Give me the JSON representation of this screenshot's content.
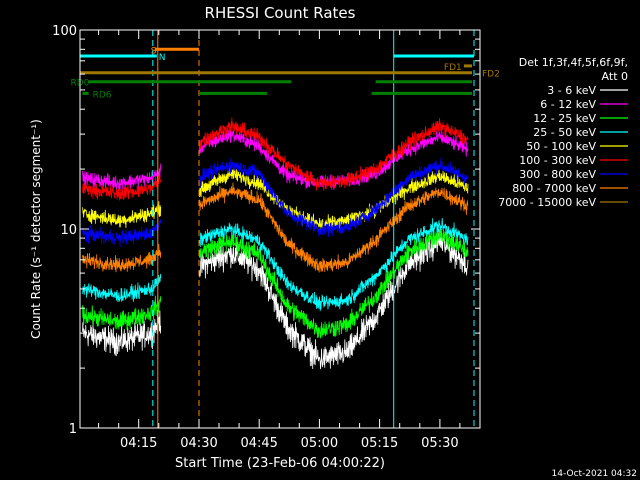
{
  "chart_data": {
    "type": "line",
    "title": "RHESSI Count Rates",
    "xlabel": "Start Time (23-Feb-06 04:00:22)",
    "ylabel": "Count Rate (s⁻¹ detector segment⁻¹)",
    "y_scale": "log",
    "ylim": [
      1,
      100
    ],
    "xlim": [
      "04:00:22",
      "05:40:00"
    ],
    "x_ticks": [
      "04:15",
      "04:30",
      "04:45",
      "05:00",
      "05:15",
      "05:30"
    ],
    "y_ticks": [
      "1",
      "10",
      "100"
    ],
    "grid": false,
    "legend_placement": "right",
    "legend_header": [
      "Det 1f,3f,4f,5f,6f,9f,",
      "Att 0"
    ],
    "timestamp": "14-Oct-2021 04:32",
    "gaps": [
      [
        "04:20:30",
        "04:30:00"
      ]
    ],
    "series": [
      {
        "name": "3 - 6 keV",
        "color": "#ffffff",
        "samples": [
          [
            "04:01",
            3.0
          ],
          [
            "04:10",
            2.7
          ],
          [
            "04:18",
            3.0
          ],
          [
            "04:31",
            6.6
          ],
          [
            "04:38",
            7.6
          ],
          [
            "04:45",
            6.3
          ],
          [
            "04:52",
            3.2
          ],
          [
            "05:00",
            2.2
          ],
          [
            "05:07",
            2.4
          ],
          [
            "05:14",
            3.6
          ],
          [
            "05:22",
            6.6
          ],
          [
            "05:30",
            8.7
          ],
          [
            "05:37",
            6.6
          ]
        ]
      },
      {
        "name": "6 - 12 keV",
        "color": "#ff00ff",
        "samples": [
          [
            "04:01",
            18.0
          ],
          [
            "04:10",
            17.0
          ],
          [
            "04:18",
            18.0
          ],
          [
            "04:31",
            26.0
          ],
          [
            "04:38",
            30.0
          ],
          [
            "04:45",
            26.0
          ],
          [
            "04:52",
            18.5
          ],
          [
            "05:00",
            17.0
          ],
          [
            "05:07",
            17.5
          ],
          [
            "05:14",
            19.0
          ],
          [
            "05:22",
            25.0
          ],
          [
            "05:30",
            29.0
          ],
          [
            "05:37",
            25.0
          ]
        ]
      },
      {
        "name": "12 - 25 keV",
        "color": "#00ff00",
        "samples": [
          [
            "04:01",
            3.7
          ],
          [
            "04:10",
            3.4
          ],
          [
            "04:18",
            3.8
          ],
          [
            "04:31",
            7.8
          ],
          [
            "04:38",
            8.7
          ],
          [
            "04:45",
            7.5
          ],
          [
            "04:52",
            4.1
          ],
          [
            "05:00",
            3.1
          ],
          [
            "05:07",
            3.3
          ],
          [
            "05:14",
            4.6
          ],
          [
            "05:22",
            7.6
          ],
          [
            "05:30",
            9.5
          ],
          [
            "05:37",
            7.6
          ]
        ]
      },
      {
        "name": "25 - 50 keV",
        "color": "#00ffff",
        "samples": [
          [
            "04:01",
            5.0
          ],
          [
            "04:10",
            4.6
          ],
          [
            "04:18",
            5.0
          ],
          [
            "04:31",
            9.0
          ],
          [
            "04:38",
            10.0
          ],
          [
            "04:45",
            8.7
          ],
          [
            "04:52",
            5.3
          ],
          [
            "05:00",
            4.2
          ],
          [
            "05:07",
            4.4
          ],
          [
            "05:14",
            5.8
          ],
          [
            "05:22",
            8.8
          ],
          [
            "05:30",
            10.5
          ],
          [
            "05:37",
            8.8
          ]
        ]
      },
      {
        "name": "50 - 100 keV",
        "color": "#ffff00",
        "samples": [
          [
            "04:01",
            12.0
          ],
          [
            "04:10",
            11.0
          ],
          [
            "04:18",
            12.0
          ],
          [
            "04:31",
            16.0
          ],
          [
            "04:38",
            19.0
          ],
          [
            "04:45",
            17.0
          ],
          [
            "04:52",
            12.5
          ],
          [
            "05:00",
            10.5
          ],
          [
            "05:07",
            11.0
          ],
          [
            "05:14",
            12.5
          ],
          [
            "05:22",
            16.0
          ],
          [
            "05:30",
            18.5
          ],
          [
            "05:37",
            16.0
          ]
        ]
      },
      {
        "name": "100 - 300 keV",
        "color": "#ff0000",
        "samples": [
          [
            "04:01",
            16.0
          ],
          [
            "04:10",
            15.0
          ],
          [
            "04:18",
            16.0
          ],
          [
            "04:31",
            28.0
          ],
          [
            "04:38",
            33.0
          ],
          [
            "04:45",
            29.0
          ],
          [
            "04:52",
            21.0
          ],
          [
            "05:00",
            17.0
          ],
          [
            "05:07",
            17.5
          ],
          [
            "05:14",
            20.0
          ],
          [
            "05:22",
            27.0
          ],
          [
            "05:30",
            33.0
          ],
          [
            "05:37",
            28.0
          ]
        ]
      },
      {
        "name": "300 - 800 keV",
        "color": "#0000ff",
        "samples": [
          [
            "04:01",
            9.5
          ],
          [
            "04:10",
            9.0
          ],
          [
            "04:18",
            9.5
          ],
          [
            "04:31",
            18.5
          ],
          [
            "04:38",
            21.0
          ],
          [
            "04:45",
            19.0
          ],
          [
            "04:52",
            12.0
          ],
          [
            "05:00",
            10.0
          ],
          [
            "05:07",
            10.2
          ],
          [
            "05:14",
            12.5
          ],
          [
            "05:22",
            18.0
          ],
          [
            "05:30",
            21.0
          ],
          [
            "05:37",
            18.0
          ]
        ]
      },
      {
        "name": "800 - 7000 keV",
        "color": "#ff8000",
        "samples": [
          [
            "04:01",
            7.0
          ],
          [
            "04:10",
            6.6
          ],
          [
            "04:18",
            7.0
          ],
          [
            "04:31",
            13.5
          ],
          [
            "04:38",
            15.5
          ],
          [
            "04:45",
            14.0
          ],
          [
            "04:52",
            8.5
          ],
          [
            "05:00",
            6.5
          ],
          [
            "05:07",
            6.8
          ],
          [
            "05:14",
            8.8
          ],
          [
            "05:22",
            13.0
          ],
          [
            "05:30",
            15.5
          ],
          [
            "05:37",
            13.0
          ]
        ]
      },
      {
        "name": "7000 - 15000 keV",
        "color": "#a07800",
        "samples": []
      }
    ],
    "annotations": {
      "horizontal_bars": [
        {
          "label": "S",
          "color": "#ff8000",
          "y": 80,
          "from": "04:19:00",
          "to": "04:30:00",
          "label_at": "04:18:00"
        },
        {
          "label": "N",
          "color": "#00ffff",
          "y": 74,
          "from": "04:00:22",
          "to": "04:19:30",
          "label_at": "04:20:00"
        },
        {
          "label": "",
          "color": "#00ffff",
          "y": 74,
          "from": "05:18:30",
          "to": "05:38:30",
          "label_at": ""
        },
        {
          "label": "FD1",
          "color": "#a07800",
          "y": 66,
          "from": "05:36:00",
          "to": "05:38:00",
          "label_at": "05:31:00"
        },
        {
          "label": "FD2",
          "color": "#a07800",
          "y": 61,
          "from": "04:00:22",
          "to": "05:38:00",
          "label_at": "05:40:30"
        },
        {
          "label": "RD0",
          "color": "#008000",
          "y": 55,
          "from": "04:02:30",
          "to": "04:53:00",
          "label_at": "03:58:00"
        },
        {
          "label": "",
          "color": "#008000",
          "y": 55,
          "from": "05:14:00",
          "to": "05:38:00",
          "label_at": ""
        },
        {
          "label": "RD6",
          "color": "#008000",
          "y": 48,
          "from": "04:01:00",
          "to": "04:02:30",
          "label_at": "04:03:30"
        },
        {
          "label": "",
          "color": "#008000",
          "y": 48,
          "from": "04:30:00",
          "to": "04:47:00",
          "label_at": ""
        },
        {
          "label": "",
          "color": "#008000",
          "y": 48,
          "from": "05:13:00",
          "to": "05:38:00",
          "label_at": ""
        }
      ],
      "vertical_lines": [
        {
          "t": "04:00:22",
          "color": "#00ffff",
          "style": "solid"
        },
        {
          "t": "04:18:30",
          "color": "#00ffff",
          "style": "dashed"
        },
        {
          "t": "04:19:45",
          "color": "#ff8000",
          "style": "solid"
        },
        {
          "t": "04:30:00",
          "color": "#ff8000",
          "style": "dashed"
        },
        {
          "t": "05:18:30",
          "color": "#00ffff",
          "style": "solid"
        },
        {
          "t": "05:38:30",
          "color": "#00ffff",
          "style": "dashed"
        }
      ]
    }
  }
}
